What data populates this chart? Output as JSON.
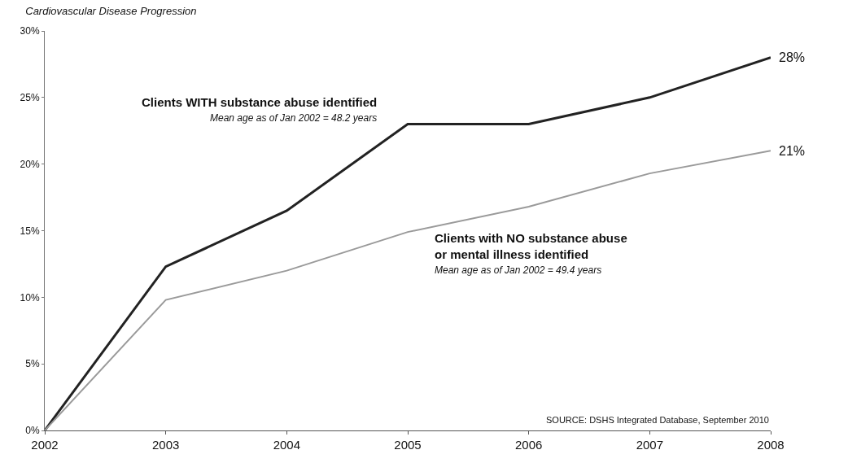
{
  "chart_data": {
    "type": "line",
    "title": "Cardiovascular Disease Progression",
    "categories": [
      "2002",
      "2003",
      "2004",
      "2005",
      "2006",
      "2007",
      "2008"
    ],
    "series": [
      {
        "name": "Clients WITH substance abuse identified",
        "color": "#222222",
        "values": [
          0,
          12.3,
          16.5,
          23,
          23,
          25,
          28
        ]
      },
      {
        "name": "Clients with NO substance abuse or mental illness identified",
        "color": "#9a9a9a",
        "values": [
          0,
          9.8,
          12,
          14.9,
          16.8,
          19.3,
          21
        ]
      }
    ],
    "ylim": [
      0,
      30
    ],
    "yticks": [
      {
        "value": 0,
        "label": "0%"
      },
      {
        "value": 5,
        "label": "5%"
      },
      {
        "value": 10,
        "label": "10%"
      },
      {
        "value": 15,
        "label": "15%"
      },
      {
        "value": 20,
        "label": "20%"
      },
      {
        "value": 25,
        "label": "25%"
      },
      {
        "value": 30,
        "label": "30%"
      }
    ],
    "annotations": [
      "Mean age as of Jan 2002 = 48.2 years",
      "Mean age as of Jan 2002 = 49.4 years",
      {
        "text": "28%",
        "x": "2008",
        "y": 28
      },
      {
        "text": "21%",
        "x": "2008",
        "y": 21
      },
      "SOURCE: DSHS Integrated Database, September 2010"
    ],
    "marker": "none",
    "line_style": "solid"
  }
}
